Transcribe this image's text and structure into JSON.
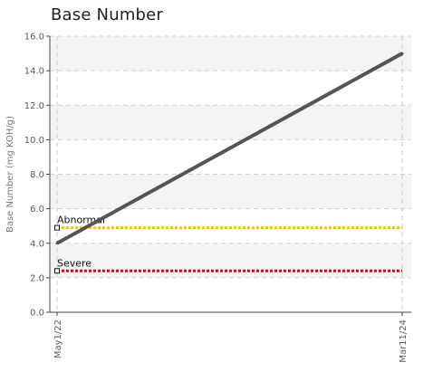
{
  "chart_data": {
    "type": "line",
    "title": "Base Number",
    "xlabel": "",
    "ylabel": "Base Number (mg KOH/g)",
    "ylim": [
      0,
      16
    ],
    "y_ticks": [
      "0.0",
      "2.0",
      "4.0",
      "6.0",
      "8.0",
      "10.0",
      "12.0",
      "14.0",
      "16.0"
    ],
    "x_ticks": [
      "May1/22",
      "Mar11/24"
    ],
    "grid": true,
    "series": [
      {
        "values": [
          {
            "x": "May1/22",
            "y": 4.0
          },
          {
            "x": "Mar11/24",
            "y": 15.0
          }
        ],
        "color": "#555555"
      }
    ],
    "limits": [
      {
        "name": "Abnormal",
        "value": 4.9,
        "color": "#f5c400"
      },
      {
        "name": "Severe",
        "value": 2.4,
        "color": "#e8001c"
      }
    ]
  }
}
